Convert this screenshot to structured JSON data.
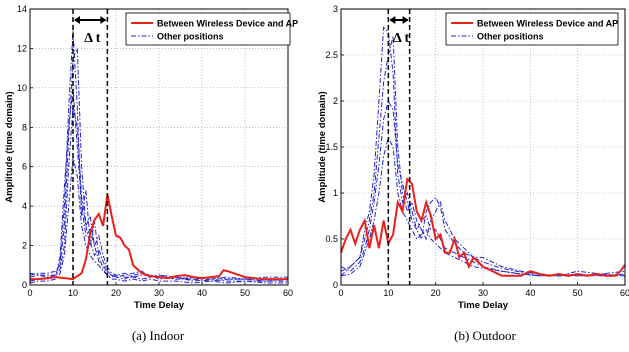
{
  "chart_data": [
    {
      "type": "line",
      "caption": "(a)  Indoor",
      "xlabel": "Time Delay",
      "ylabel": "Amplitude (time domain)",
      "xlim": [
        0,
        60
      ],
      "ylim": [
        0,
        14
      ],
      "xticks": [
        0,
        10,
        20,
        30,
        40,
        50,
        60
      ],
      "yticks": [
        0,
        2,
        4,
        6,
        8,
        10,
        12,
        14
      ],
      "grid": true,
      "legend_position": "top-right",
      "annotation": "Δ t",
      "delta_lines": [
        10,
        18
      ],
      "series": [
        {
          "name": "Between Wireless Device and AP",
          "color": "#e8211b",
          "style": "solid",
          "x": [
            0,
            2,
            4,
            6,
            8,
            10,
            12,
            13,
            14,
            15,
            16,
            17,
            18,
            19,
            20,
            21,
            22,
            23,
            24,
            25,
            26,
            27,
            28,
            30,
            32,
            34,
            36,
            38,
            40,
            42,
            44,
            45,
            46,
            48,
            50,
            52,
            54,
            56,
            58,
            60
          ],
          "y": [
            0.3,
            0.3,
            0.35,
            0.4,
            0.35,
            0.3,
            0.6,
            1.3,
            2.6,
            3.3,
            3.6,
            3.0,
            4.6,
            3.5,
            2.5,
            2.4,
            2.0,
            1.8,
            1.0,
            0.8,
            0.6,
            0.5,
            0.45,
            0.4,
            0.35,
            0.45,
            0.5,
            0.4,
            0.35,
            0.4,
            0.45,
            0.75,
            0.7,
            0.55,
            0.4,
            0.35,
            0.3,
            0.3,
            0.3,
            0.3
          ]
        },
        {
          "name": "Other positions",
          "color": "#2222cc",
          "style": "dashdot",
          "curves": [
            {
              "x": [
                0,
                2,
                4,
                6,
                7,
                8,
                9,
                10,
                11,
                12,
                13,
                14,
                15,
                16,
                17,
                18,
                19,
                20,
                22,
                24,
                26,
                28,
                30,
                34,
                38,
                42,
                46,
                50,
                55,
                60
              ],
              "y": [
                0.4,
                0.5,
                0.5,
                0.5,
                1.2,
                4.0,
                9.0,
                12.9,
                9.0,
                3.5,
                4.8,
                2.2,
                1.5,
                1.8,
                1.2,
                0.7,
                0.5,
                0.4,
                0.3,
                0.5,
                0.6,
                0.5,
                0.4,
                0.3,
                0.3,
                0.4,
                0.3,
                0.3,
                0.3,
                0.3
              ]
            },
            {
              "x": [
                0,
                2,
                4,
                6,
                7,
                8,
                9,
                10,
                11,
                12,
                13,
                14,
                15,
                16,
                17,
                18,
                19,
                20,
                22,
                24,
                26,
                28,
                30,
                34,
                38,
                42,
                46,
                50,
                55,
                60
              ],
              "y": [
                0.5,
                0.6,
                0.6,
                0.7,
                1.0,
                3.0,
                7.5,
                11.5,
                12.0,
                6.0,
                3.0,
                3.5,
                2.0,
                1.2,
                1.0,
                0.6,
                0.5,
                0.4,
                0.5,
                0.6,
                0.7,
                0.4,
                0.5,
                0.3,
                0.4,
                0.3,
                0.4,
                0.3,
                0.4,
                0.4
              ]
            },
            {
              "x": [
                0,
                2,
                4,
                6,
                7,
                8,
                9,
                10,
                11,
                12,
                13,
                14,
                15,
                16,
                17,
                18,
                19,
                20,
                22,
                24,
                26,
                28,
                30,
                34,
                38,
                42,
                46,
                50,
                55,
                60
              ],
              "y": [
                0.2,
                0.3,
                0.3,
                0.4,
                1.5,
                5.0,
                8.0,
                10.0,
                7.0,
                4.0,
                2.5,
                2.8,
                2.0,
                2.5,
                1.5,
                0.9,
                0.6,
                0.5,
                0.4,
                0.4,
                0.5,
                0.5,
                0.3,
                0.4,
                0.2,
                0.3,
                0.2,
                0.2,
                0.2,
                0.2
              ]
            },
            {
              "x": [
                0,
                2,
                4,
                6,
                7,
                8,
                9,
                10,
                11,
                12,
                13,
                14,
                15,
                16,
                17,
                18,
                19,
                20,
                22,
                24,
                26,
                28,
                30,
                34,
                38,
                42,
                46,
                50,
                55,
                60
              ],
              "y": [
                0.6,
                0.5,
                0.4,
                0.5,
                0.8,
                2.0,
                6.0,
                9.0,
                8.0,
                4.5,
                3.0,
                2.0,
                3.2,
                1.5,
                0.8,
                0.5,
                0.4,
                0.5,
                0.6,
                0.4,
                0.3,
                0.4,
                0.5,
                0.4,
                0.3,
                0.2,
                0.3,
                0.3,
                0.2,
                0.3
              ]
            },
            {
              "x": [
                0,
                2,
                4,
                6,
                7,
                8,
                9,
                10,
                11,
                12,
                13,
                14,
                15,
                16,
                17,
                18,
                19,
                20,
                22,
                24,
                26,
                28,
                30,
                34,
                38,
                42,
                46,
                50,
                55,
                60
              ],
              "y": [
                0.1,
                0.2,
                0.2,
                0.3,
                0.6,
                1.5,
                4.0,
                6.5,
                5.5,
                3.0,
                2.0,
                1.5,
                1.2,
                1.0,
                0.7,
                0.5,
                0.3,
                0.3,
                0.2,
                0.3,
                0.2,
                0.3,
                0.2,
                0.2,
                0.1,
                0.2,
                0.1,
                0.2,
                0.1,
                0.1
              ]
            }
          ]
        }
      ]
    },
    {
      "type": "line",
      "caption": "(b)  Outdoor",
      "xlabel": "Time Delay",
      "ylabel": "Amplitude (time domain)",
      "xlim": [
        0,
        60
      ],
      "ylim": [
        0,
        3
      ],
      "xticks": [
        0,
        10,
        20,
        30,
        40,
        50,
        60
      ],
      "yticks": [
        0,
        0.5,
        1,
        1.5,
        2,
        2.5,
        3
      ],
      "grid": true,
      "legend_position": "top-right",
      "annotation": "Δ t",
      "delta_lines": [
        10,
        14.5
      ],
      "series": [
        {
          "name": "Between Wireless Device and AP",
          "color": "#e8211b",
          "style": "solid",
          "x": [
            0,
            1,
            2,
            3,
            4,
            5,
            6,
            7,
            8,
            9,
            10,
            11,
            12,
            13,
            14,
            15,
            16,
            17,
            18,
            19,
            20,
            21,
            22,
            23,
            24,
            25,
            26,
            27,
            28,
            29,
            30,
            32,
            34,
            36,
            38,
            40,
            42,
            44,
            46,
            48,
            50,
            52,
            54,
            56,
            58,
            59,
            60
          ],
          "y": [
            0.35,
            0.5,
            0.6,
            0.45,
            0.6,
            0.7,
            0.4,
            0.65,
            0.4,
            0.7,
            0.45,
            0.55,
            0.9,
            0.8,
            1.15,
            1.1,
            0.8,
            0.7,
            0.9,
            0.75,
            0.5,
            0.55,
            0.35,
            0.35,
            0.5,
            0.3,
            0.35,
            0.2,
            0.3,
            0.25,
            0.2,
            0.15,
            0.1,
            0.1,
            0.1,
            0.15,
            0.12,
            0.1,
            0.12,
            0.1,
            0.12,
            0.1,
            0.12,
            0.1,
            0.1,
            0.15,
            0.22
          ]
        },
        {
          "name": "Other positions",
          "color": "#2222cc",
          "style": "dashdot",
          "curves": [
            {
              "x": [
                0,
                2,
                4,
                5,
                6,
                7,
                8,
                9,
                10,
                11,
                12,
                13,
                14,
                15,
                16,
                17,
                18,
                19,
                20,
                21,
                22,
                24,
                26,
                28,
                30,
                34,
                38,
                42,
                46,
                50,
                55,
                60
              ],
              "y": [
                0.15,
                0.2,
                0.3,
                0.6,
                0.8,
                1.2,
                2.0,
                2.8,
                2.75,
                2.3,
                1.2,
                0.9,
                1.0,
                0.8,
                0.6,
                0.7,
                0.75,
                0.6,
                0.6,
                0.5,
                0.4,
                0.35,
                0.3,
                0.25,
                0.2,
                0.15,
                0.12,
                0.1,
                0.12,
                0.1,
                0.12,
                0.15
              ]
            },
            {
              "x": [
                0,
                2,
                4,
                5,
                6,
                7,
                8,
                9,
                10,
                11,
                12,
                13,
                14,
                15,
                16,
                17,
                18,
                19,
                20,
                21,
                22,
                24,
                26,
                28,
                30,
                34,
                38,
                42,
                46,
                50,
                55,
                60
              ],
              "y": [
                0.1,
                0.2,
                0.3,
                0.5,
                0.7,
                1.0,
                1.6,
                2.2,
                2.5,
                2.7,
                1.5,
                1.0,
                0.8,
                0.9,
                0.7,
                0.6,
                0.5,
                0.7,
                0.8,
                0.9,
                0.7,
                0.5,
                0.4,
                0.3,
                0.3,
                0.2,
                0.15,
                0.12,
                0.1,
                0.15,
                0.12,
                0.1
              ]
            },
            {
              "x": [
                0,
                2,
                4,
                5,
                6,
                7,
                8,
                9,
                10,
                11,
                12,
                13,
                14,
                15,
                16,
                17,
                18,
                19,
                20,
                21,
                22,
                24,
                26,
                28,
                30,
                34,
                38,
                42,
                46,
                50,
                55,
                60
              ],
              "y": [
                0.2,
                0.15,
                0.25,
                0.4,
                0.6,
                0.9,
                1.3,
                1.8,
                2.0,
                1.9,
                1.3,
                1.1,
                0.9,
                0.7,
                0.6,
                0.5,
                0.8,
                0.9,
                0.95,
                0.85,
                0.6,
                0.45,
                0.35,
                0.3,
                0.25,
                0.18,
                0.14,
                0.1,
                0.1,
                0.12,
                0.1,
                0.12
              ]
            },
            {
              "x": [
                0,
                2,
                4,
                5,
                6,
                7,
                8,
                9,
                10,
                11,
                12,
                13,
                14,
                15,
                16,
                17,
                18,
                19,
                20,
                21,
                22,
                24,
                26,
                28,
                30,
                34,
                38,
                42,
                46,
                50,
                55,
                60
              ],
              "y": [
                0.1,
                0.12,
                0.2,
                0.35,
                0.5,
                0.7,
                1.0,
                1.4,
                1.6,
                1.5,
                1.0,
                0.8,
                0.7,
                0.6,
                0.5,
                0.55,
                0.6,
                0.5,
                0.45,
                0.4,
                0.35,
                0.3,
                0.25,
                0.2,
                0.18,
                0.15,
                0.12,
                0.1,
                0.1,
                0.1,
                0.1,
                0.1
              ]
            }
          ]
        }
      ]
    }
  ]
}
